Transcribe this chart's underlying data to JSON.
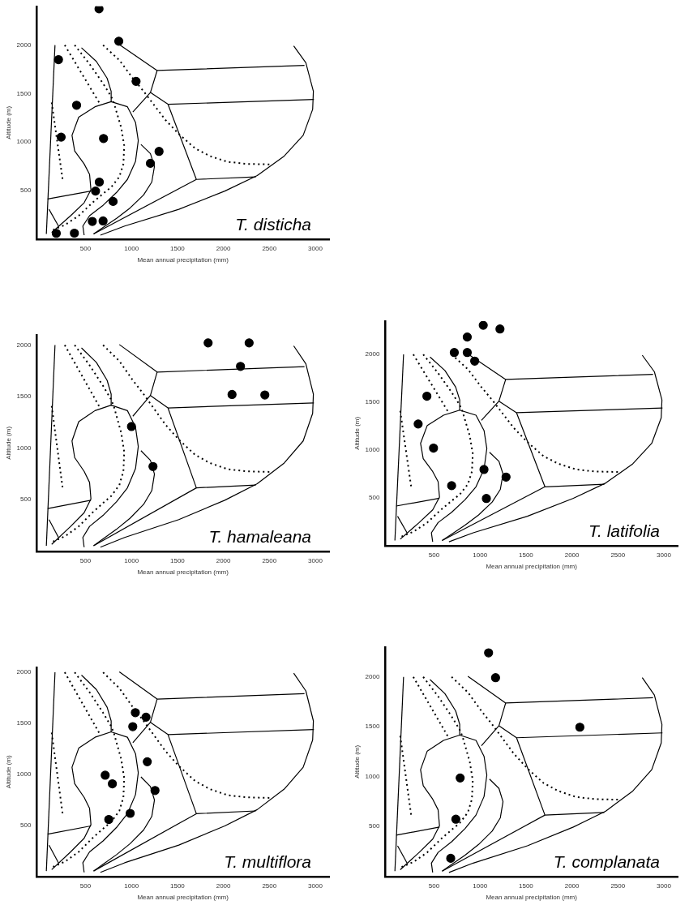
{
  "chart_data": [
    {
      "type": "scatter",
      "xlabel": "Mean annual precipitation (mm)",
      "ylabel": "Altitude (m)",
      "xlim": [
        -30,
        3150
      ],
      "ylim": [
        0,
        2400
      ],
      "xticks": [
        500,
        1000,
        1500,
        2000,
        2500,
        3000
      ],
      "yticks": [
        500,
        1000,
        1500,
        2000
      ],
      "annotations": [
        "T. disticha"
      ],
      "series": [
        {
          "type": "scatter",
          "marker": "circle",
          "color": "#000000",
          "x": [
            647,
            862,
            206,
            1050,
            403,
            696,
            235,
            1300,
            1206,
            650,
            609,
            800,
            574,
            691,
            182,
            379
          ],
          "values": [
            2374,
            2040,
            1850,
            1626,
            1380,
            1037,
            1051,
            904,
            781,
            588,
            495,
            388,
            182,
            187,
            59,
            61
          ]
        },
        {
          "type": "line",
          "marker": "none",
          "line_style": "solid",
          "color": "#000000",
          "x": [
            168,
            74
          ],
          "values": [
            2000,
            53
          ]
        },
        {
          "type": "line",
          "marker": "none",
          "line_style": "dotted",
          "color": "#000000",
          "x": [
            274,
            647
          ],
          "values": [
            2000,
            1409
          ]
        },
        {
          "type": "line",
          "marker": "none",
          "line_style": "dotted",
          "color": "#000000",
          "x": [
            132,
            250
          ],
          "values": [
            1409,
            620
          ]
        },
        {
          "type": "line",
          "marker": "none",
          "line_style": "dotted",
          "color": "#000000",
          "x": [
            382,
            544,
            691,
            779,
            809,
            838,
            888,
            921,
            912,
            868,
            779,
            691,
            574,
            426,
            279,
            147
          ],
          "values": [
            2000,
            1805,
            1604,
            1471,
            1404,
            1310,
            1150,
            963,
            775,
            642,
            535,
            468,
            374,
            241,
            147,
            94
          ]
        },
        {
          "type": "line",
          "marker": "none",
          "line_style": "dotted",
          "color": "#000000",
          "x": [
            691,
            868,
            1015,
            1132,
            1250,
            1368,
            1515,
            1691,
            1853,
            2044,
            2250,
            2500
          ],
          "values": [
            2000,
            1845,
            1658,
            1524,
            1377,
            1230,
            1083,
            936,
            856,
            797,
            775,
            770
          ]
        },
        {
          "type": "line",
          "marker": "none",
          "line_style": "solid",
          "color": "#000000",
          "x": [
            456,
            618,
            735,
            779,
            779
          ],
          "values": [
            1973,
            1832,
            1658,
            1524,
            1417
          ]
        },
        {
          "type": "line",
          "marker": "none",
          "line_style": "solid",
          "color": "#000000",
          "x": [
            132,
            338,
            485,
            559,
            544,
            485,
            382,
            353,
            426,
            603,
            779,
            956,
            1044,
            1074,
            1044,
            956,
            838,
            691,
            544,
            471,
            485
          ],
          "values": [
            67,
            241,
            374,
            508,
            668,
            775,
            909,
            1070,
            1257,
            1364,
            1417,
            1364,
            1203,
            1016,
            802,
            615,
            481,
            348,
            241,
            134,
            40
          ]
        },
        {
          "type": "line",
          "marker": "none",
          "line_style": "solid",
          "color": "#000000",
          "x": [
            1103,
            1206,
            1250,
            1221,
            1132,
            985,
            838,
            691,
            588
          ],
          "values": [
            976,
            882,
            749,
            588,
            455,
            321,
            214,
            120,
            53
          ]
        },
        {
          "type": "line",
          "marker": "none",
          "line_style": "solid",
          "color": "#000000",
          "x": [
            868,
            1279,
            2882
          ],
          "values": [
            2005,
            1738,
            1791
          ]
        },
        {
          "type": "line",
          "marker": "none",
          "line_style": "solid",
          "color": "#000000",
          "x": [
            1279,
            1206,
            1015
          ],
          "values": [
            1738,
            1511,
            1310
          ]
        },
        {
          "type": "line",
          "marker": "none",
          "line_style": "solid",
          "color": "#000000",
          "x": [
            1206,
            1397,
            1706,
            2353
          ],
          "values": [
            1511,
            1390,
            615,
            642
          ]
        },
        {
          "type": "line",
          "marker": "none",
          "line_style": "solid",
          "color": "#000000",
          "x": [
            1397,
            2985
          ],
          "values": [
            1390,
            1439
          ]
        },
        {
          "type": "line",
          "marker": "none",
          "line_style": "solid",
          "color": "#000000",
          "x": [
            2765,
            2897,
            2979,
            2971,
            2868,
            2662,
            2368,
            2015,
            1515,
            926,
            662
          ],
          "values": [
            1992,
            1818,
            1524,
            1337,
            1070,
            856,
            655,
            495,
            307,
            134,
            40
          ]
        },
        {
          "type": "line",
          "marker": "none",
          "line_style": "solid",
          "color": "#000000",
          "x": [
            1706,
            588
          ],
          "values": [
            615,
            53
          ]
        },
        {
          "type": "line",
          "marker": "none",
          "line_style": "solid",
          "color": "#000000",
          "x": [
            88,
            559
          ],
          "values": [
            414,
            495
          ]
        },
        {
          "type": "line",
          "marker": "none",
          "line_style": "solid",
          "color": "#000000",
          "x": [
            103,
            206
          ],
          "values": [
            307,
            134
          ]
        }
      ]
    },
    {
      "type": "scatter",
      "xlabel": "Mean annual precipitation (mm)",
      "ylabel": "Altitude (m)",
      "xlim": [
        -30,
        3150
      ],
      "ylim": [
        0,
        2100
      ],
      "xticks": [
        500,
        1000,
        1500,
        2000,
        2500,
        3000
      ],
      "yticks": [
        500,
        1000,
        1500,
        2000
      ],
      "annotations": [
        "T. hamaleana"
      ],
      "series": [
        {
          "type": "scatter",
          "marker": "circle",
          "color": "#000000",
          "x": [
            1834,
            2280,
            2186,
            2094,
            2451,
            1000,
            1234
          ],
          "values": [
            2021,
            2021,
            1793,
            1521,
            1516,
            1210,
            822
          ]
        },
        {
          "type": "line",
          "marker": "none",
          "line_style": "solid",
          "color": "#000000",
          "x": [
            168,
            74
          ],
          "values": [
            2000,
            53
          ]
        },
        {
          "type": "line",
          "marker": "none",
          "line_style": "dotted",
          "color": "#000000",
          "x": [
            274,
            647
          ],
          "values": [
            2000,
            1409
          ]
        },
        {
          "type": "line",
          "marker": "none",
          "line_style": "dotted",
          "color": "#000000",
          "x": [
            132,
            250
          ],
          "values": [
            1409,
            620
          ]
        },
        {
          "type": "line",
          "marker": "none",
          "line_style": "dotted",
          "color": "#000000",
          "x": [
            382,
            544,
            691,
            779,
            809,
            838,
            888,
            921,
            912,
            868,
            779,
            691,
            574,
            426,
            279,
            147
          ],
          "values": [
            2000,
            1805,
            1604,
            1471,
            1404,
            1310,
            1150,
            963,
            775,
            642,
            535,
            468,
            374,
            241,
            147,
            94
          ]
        },
        {
          "type": "line",
          "marker": "none",
          "line_style": "dotted",
          "color": "#000000",
          "x": [
            691,
            868,
            1015,
            1132,
            1250,
            1368,
            1515,
            1691,
            1853,
            2044,
            2250,
            2500
          ],
          "values": [
            2000,
            1845,
            1658,
            1524,
            1377,
            1230,
            1083,
            936,
            856,
            797,
            775,
            770
          ]
        },
        {
          "type": "line",
          "marker": "none",
          "line_style": "solid",
          "color": "#000000",
          "x": [
            456,
            618,
            735,
            779,
            779
          ],
          "values": [
            1973,
            1832,
            1658,
            1524,
            1417
          ]
        },
        {
          "type": "line",
          "marker": "none",
          "line_style": "solid",
          "color": "#000000",
          "x": [
            132,
            338,
            485,
            559,
            544,
            485,
            382,
            353,
            426,
            603,
            779,
            956,
            1044,
            1074,
            1044,
            956,
            838,
            691,
            544,
            471,
            485
          ],
          "values": [
            67,
            241,
            374,
            508,
            668,
            775,
            909,
            1070,
            1257,
            1364,
            1417,
            1364,
            1203,
            1016,
            802,
            615,
            481,
            348,
            241,
            134,
            40
          ]
        },
        {
          "type": "line",
          "marker": "none",
          "line_style": "solid",
          "color": "#000000",
          "x": [
            1103,
            1206,
            1250,
            1221,
            1132,
            985,
            838,
            691,
            588
          ],
          "values": [
            976,
            882,
            749,
            588,
            455,
            321,
            214,
            120,
            53
          ]
        },
        {
          "type": "line",
          "marker": "none",
          "line_style": "solid",
          "color": "#000000",
          "x": [
            868,
            1279,
            2882
          ],
          "values": [
            2005,
            1738,
            1791
          ]
        },
        {
          "type": "line",
          "marker": "none",
          "line_style": "solid",
          "color": "#000000",
          "x": [
            1279,
            1206,
            1015
          ],
          "values": [
            1738,
            1511,
            1310
          ]
        },
        {
          "type": "line",
          "marker": "none",
          "line_style": "solid",
          "color": "#000000",
          "x": [
            1206,
            1397,
            1706,
            2353
          ],
          "values": [
            1511,
            1390,
            615,
            642
          ]
        },
        {
          "type": "line",
          "marker": "none",
          "line_style": "solid",
          "color": "#000000",
          "x": [
            1397,
            2985
          ],
          "values": [
            1390,
            1439
          ]
        },
        {
          "type": "line",
          "marker": "none",
          "line_style": "solid",
          "color": "#000000",
          "x": [
            2765,
            2897,
            2979,
            2971,
            2868,
            2662,
            2368,
            2015,
            1515,
            926,
            662
          ],
          "values": [
            1992,
            1818,
            1524,
            1337,
            1070,
            856,
            655,
            495,
            307,
            134,
            40
          ]
        },
        {
          "type": "line",
          "marker": "none",
          "line_style": "solid",
          "color": "#000000",
          "x": [
            1706,
            588
          ],
          "values": [
            615,
            53
          ]
        },
        {
          "type": "line",
          "marker": "none",
          "line_style": "solid",
          "color": "#000000",
          "x": [
            88,
            559
          ],
          "values": [
            414,
            495
          ]
        },
        {
          "type": "line",
          "marker": "none",
          "line_style": "solid",
          "color": "#000000",
          "x": [
            103,
            206
          ],
          "values": [
            307,
            134
          ]
        }
      ]
    },
    {
      "type": "scatter",
      "xlabel": "Mean annual precipitation (mm)",
      "ylabel": "Altitude (m)",
      "xlim": [
        -30,
        3150
      ],
      "ylim": [
        0,
        2350
      ],
      "xticks": [
        500,
        1000,
        1500,
        2000,
        2500,
        3000
      ],
      "yticks": [
        500,
        1000,
        1500,
        2000
      ],
      "annotations": [
        "T. latifolia"
      ],
      "series": [
        {
          "type": "scatter",
          "marker": "circle",
          "color": "#000000",
          "x": [
            1035,
            1217,
            861,
            720,
            861,
            942,
            422,
            327,
            494,
            1043,
            1283,
            691,
            1069
          ],
          "values": [
            2305,
            2266,
            2182,
            2020,
            2020,
            1930,
            1563,
            1272,
            1020,
            796,
            717,
            627,
            493
          ]
        },
        {
          "type": "line",
          "marker": "none",
          "line_style": "solid",
          "color": "#000000",
          "x": [
            168,
            74
          ],
          "values": [
            2000,
            53
          ]
        },
        {
          "type": "line",
          "marker": "none",
          "line_style": "dotted",
          "color": "#000000",
          "x": [
            274,
            647
          ],
          "values": [
            2000,
            1409
          ]
        },
        {
          "type": "line",
          "marker": "none",
          "line_style": "dotted",
          "color": "#000000",
          "x": [
            132,
            250
          ],
          "values": [
            1409,
            620
          ]
        },
        {
          "type": "line",
          "marker": "none",
          "line_style": "dotted",
          "color": "#000000",
          "x": [
            382,
            544,
            691,
            779,
            809,
            838,
            888,
            921,
            912,
            868,
            779,
            691,
            574,
            426,
            279,
            147
          ],
          "values": [
            2000,
            1805,
            1604,
            1471,
            1404,
            1310,
            1150,
            963,
            775,
            642,
            535,
            468,
            374,
            241,
            147,
            94
          ]
        },
        {
          "type": "line",
          "marker": "none",
          "line_style": "dotted",
          "color": "#000000",
          "x": [
            691,
            868,
            1015,
            1132,
            1250,
            1368,
            1515,
            1691,
            1853,
            2044,
            2250,
            2500
          ],
          "values": [
            2000,
            1845,
            1658,
            1524,
            1377,
            1230,
            1083,
            936,
            856,
            797,
            775,
            770
          ]
        },
        {
          "type": "line",
          "marker": "none",
          "line_style": "solid",
          "color": "#000000",
          "x": [
            456,
            618,
            735,
            779,
            779
          ],
          "values": [
            1973,
            1832,
            1658,
            1524,
            1417
          ]
        },
        {
          "type": "line",
          "marker": "none",
          "line_style": "solid",
          "color": "#000000",
          "x": [
            132,
            338,
            485,
            559,
            544,
            485,
            382,
            353,
            426,
            603,
            779,
            956,
            1044,
            1074,
            1044,
            956,
            838,
            691,
            544,
            471,
            485
          ],
          "values": [
            67,
            241,
            374,
            508,
            668,
            775,
            909,
            1070,
            1257,
            1364,
            1417,
            1364,
            1203,
            1016,
            802,
            615,
            481,
            348,
            241,
            134,
            40
          ]
        },
        {
          "type": "line",
          "marker": "none",
          "line_style": "solid",
          "color": "#000000",
          "x": [
            1103,
            1206,
            1250,
            1221,
            1132,
            985,
            838,
            691,
            588
          ],
          "values": [
            976,
            882,
            749,
            588,
            455,
            321,
            214,
            120,
            53
          ]
        },
        {
          "type": "line",
          "marker": "none",
          "line_style": "solid",
          "color": "#000000",
          "x": [
            868,
            1279,
            2882
          ],
          "values": [
            2005,
            1738,
            1791
          ]
        },
        {
          "type": "line",
          "marker": "none",
          "line_style": "solid",
          "color": "#000000",
          "x": [
            1279,
            1206,
            1015
          ],
          "values": [
            1738,
            1511,
            1310
          ]
        },
        {
          "type": "line",
          "marker": "none",
          "line_style": "solid",
          "color": "#000000",
          "x": [
            1206,
            1397,
            1706,
            2353
          ],
          "values": [
            1511,
            1390,
            615,
            642
          ]
        },
        {
          "type": "line",
          "marker": "none",
          "line_style": "solid",
          "color": "#000000",
          "x": [
            1397,
            2985
          ],
          "values": [
            1390,
            1439
          ]
        },
        {
          "type": "line",
          "marker": "none",
          "line_style": "solid",
          "color": "#000000",
          "x": [
            2765,
            2897,
            2979,
            2971,
            2868,
            2662,
            2368,
            2015,
            1515,
            926,
            662
          ],
          "values": [
            1992,
            1818,
            1524,
            1337,
            1070,
            856,
            655,
            495,
            307,
            134,
            40
          ]
        },
        {
          "type": "line",
          "marker": "none",
          "line_style": "solid",
          "color": "#000000",
          "x": [
            1706,
            588
          ],
          "values": [
            615,
            53
          ]
        },
        {
          "type": "line",
          "marker": "none",
          "line_style": "solid",
          "color": "#000000",
          "x": [
            88,
            559
          ],
          "values": [
            414,
            495
          ]
        },
        {
          "type": "line",
          "marker": "none",
          "line_style": "solid",
          "color": "#000000",
          "x": [
            103,
            206
          ],
          "values": [
            307,
            134
          ]
        }
      ]
    },
    {
      "type": "scatter",
      "xlabel": "Mean annual precipitation (mm)",
      "ylabel": "Altitude (m)",
      "xlim": [
        -30,
        3150
      ],
      "ylim": [
        0,
        2050
      ],
      "xticks": [
        500,
        1000,
        1500,
        2000,
        2500,
        3000
      ],
      "yticks": [
        500,
        1000,
        1500,
        2000
      ],
      "annotations": [
        "T. multiflora"
      ],
      "series": [
        {
          "type": "scatter",
          "marker": "circle",
          "color": "#000000",
          "x": [
            1042,
            1158,
            1014,
            1172,
            714,
            792,
            1256,
            986,
            753
          ],
          "values": [
            1605,
            1561,
            1468,
            1124,
            992,
            908,
            842,
            618,
            558
          ]
        },
        {
          "type": "line",
          "marker": "none",
          "line_style": "solid",
          "color": "#000000",
          "x": [
            168,
            74
          ],
          "values": [
            2000,
            53
          ]
        },
        {
          "type": "line",
          "marker": "none",
          "line_style": "dotted",
          "color": "#000000",
          "x": [
            274,
            647
          ],
          "values": [
            2000,
            1409
          ]
        },
        {
          "type": "line",
          "marker": "none",
          "line_style": "dotted",
          "color": "#000000",
          "x": [
            132,
            250
          ],
          "values": [
            1409,
            620
          ]
        },
        {
          "type": "line",
          "marker": "none",
          "line_style": "dotted",
          "color": "#000000",
          "x": [
            382,
            544,
            691,
            779,
            809,
            838,
            888,
            921,
            912,
            868,
            779,
            691,
            574,
            426,
            279,
            147
          ],
          "values": [
            2000,
            1805,
            1604,
            1471,
            1404,
            1310,
            1150,
            963,
            775,
            642,
            535,
            468,
            374,
            241,
            147,
            94
          ]
        },
        {
          "type": "line",
          "marker": "none",
          "line_style": "dotted",
          "color": "#000000",
          "x": [
            691,
            868,
            1015,
            1132,
            1250,
            1368,
            1515,
            1691,
            1853,
            2044,
            2250,
            2500
          ],
          "values": [
            2000,
            1845,
            1658,
            1524,
            1377,
            1230,
            1083,
            936,
            856,
            797,
            775,
            770
          ]
        },
        {
          "type": "line",
          "marker": "none",
          "line_style": "solid",
          "color": "#000000",
          "x": [
            456,
            618,
            735,
            779,
            779
          ],
          "values": [
            1973,
            1832,
            1658,
            1524,
            1417
          ]
        },
        {
          "type": "line",
          "marker": "none",
          "line_style": "solid",
          "color": "#000000",
          "x": [
            132,
            338,
            485,
            559,
            544,
            485,
            382,
            353,
            426,
            603,
            779,
            956,
            1044,
            1074,
            1044,
            956,
            838,
            691,
            544,
            471,
            485
          ],
          "values": [
            67,
            241,
            374,
            508,
            668,
            775,
            909,
            1070,
            1257,
            1364,
            1417,
            1364,
            1203,
            1016,
            802,
            615,
            481,
            348,
            241,
            134,
            40
          ]
        },
        {
          "type": "line",
          "marker": "none",
          "line_style": "solid",
          "color": "#000000",
          "x": [
            1103,
            1206,
            1250,
            1221,
            1132,
            985,
            838,
            691,
            588
          ],
          "values": [
            976,
            882,
            749,
            588,
            455,
            321,
            214,
            120,
            53
          ]
        },
        {
          "type": "line",
          "marker": "none",
          "line_style": "solid",
          "color": "#000000",
          "x": [
            868,
            1279,
            2882
          ],
          "values": [
            2005,
            1738,
            1791
          ]
        },
        {
          "type": "line",
          "marker": "none",
          "line_style": "solid",
          "color": "#000000",
          "x": [
            1279,
            1206,
            1015
          ],
          "values": [
            1738,
            1511,
            1310
          ]
        },
        {
          "type": "line",
          "marker": "none",
          "line_style": "solid",
          "color": "#000000",
          "x": [
            1206,
            1397,
            1706,
            2353
          ],
          "values": [
            1511,
            1390,
            615,
            642
          ]
        },
        {
          "type": "line",
          "marker": "none",
          "line_style": "solid",
          "color": "#000000",
          "x": [
            1397,
            2985
          ],
          "values": [
            1390,
            1439
          ]
        },
        {
          "type": "line",
          "marker": "none",
          "line_style": "solid",
          "color": "#000000",
          "x": [
            2765,
            2897,
            2979,
            2971,
            2868,
            2662,
            2368,
            2015,
            1515,
            926,
            662
          ],
          "values": [
            1992,
            1818,
            1524,
            1337,
            1070,
            856,
            655,
            495,
            307,
            134,
            40
          ]
        },
        {
          "type": "line",
          "marker": "none",
          "line_style": "solid",
          "color": "#000000",
          "x": [
            1706,
            588
          ],
          "values": [
            615,
            53
          ]
        },
        {
          "type": "line",
          "marker": "none",
          "line_style": "solid",
          "color": "#000000",
          "x": [
            88,
            559
          ],
          "values": [
            414,
            495
          ]
        },
        {
          "type": "line",
          "marker": "none",
          "line_style": "solid",
          "color": "#000000",
          "x": [
            103,
            206
          ],
          "values": [
            307,
            134
          ]
        }
      ]
    },
    {
      "type": "scatter",
      "xlabel": "Mean annual precipitation (mm)",
      "ylabel": "Altitude (m)",
      "xlim": [
        -30,
        3150
      ],
      "ylim": [
        0,
        2300
      ],
      "xticks": [
        500,
        1000,
        1500,
        2000,
        2500,
        3000
      ],
      "yticks": [
        500,
        1000,
        1500,
        2000
      ],
      "annotations": [
        "T. complanata"
      ],
      "series": [
        {
          "type": "scatter",
          "marker": "circle",
          "color": "#000000",
          "x": [
            1093,
            1169,
            2086,
            784,
            737,
            681
          ],
          "values": [
            2241,
            1992,
            1496,
            987,
            574,
            182
          ]
        },
        {
          "type": "line",
          "marker": "none",
          "line_style": "solid",
          "color": "#000000",
          "x": [
            168,
            74
          ],
          "values": [
            2000,
            53
          ]
        },
        {
          "type": "line",
          "marker": "none",
          "line_style": "dotted",
          "color": "#000000",
          "x": [
            274,
            647
          ],
          "values": [
            2000,
            1409
          ]
        },
        {
          "type": "line",
          "marker": "none",
          "line_style": "dotted",
          "color": "#000000",
          "x": [
            132,
            250
          ],
          "values": [
            1409,
            620
          ]
        },
        {
          "type": "line",
          "marker": "none",
          "line_style": "dotted",
          "color": "#000000",
          "x": [
            382,
            544,
            691,
            779,
            809,
            838,
            888,
            921,
            912,
            868,
            779,
            691,
            574,
            426,
            279,
            147
          ],
          "values": [
            2000,
            1805,
            1604,
            1471,
            1404,
            1310,
            1150,
            963,
            775,
            642,
            535,
            468,
            374,
            241,
            147,
            94
          ]
        },
        {
          "type": "line",
          "marker": "none",
          "line_style": "dotted",
          "color": "#000000",
          "x": [
            691,
            868,
            1015,
            1132,
            1250,
            1368,
            1515,
            1691,
            1853,
            2044,
            2250,
            2500
          ],
          "values": [
            2000,
            1845,
            1658,
            1524,
            1377,
            1230,
            1083,
            936,
            856,
            797,
            775,
            770
          ]
        },
        {
          "type": "line",
          "marker": "none",
          "line_style": "solid",
          "color": "#000000",
          "x": [
            456,
            618,
            735,
            779,
            779
          ],
          "values": [
            1973,
            1832,
            1658,
            1524,
            1417
          ]
        },
        {
          "type": "line",
          "marker": "none",
          "line_style": "solid",
          "color": "#000000",
          "x": [
            132,
            338,
            485,
            559,
            544,
            485,
            382,
            353,
            426,
            603,
            779,
            956,
            1044,
            1074,
            1044,
            956,
            838,
            691,
            544,
            471,
            485
          ],
          "values": [
            67,
            241,
            374,
            508,
            668,
            775,
            909,
            1070,
            1257,
            1364,
            1417,
            1364,
            1203,
            1016,
            802,
            615,
            481,
            348,
            241,
            134,
            40
          ]
        },
        {
          "type": "line",
          "marker": "none",
          "line_style": "solid",
          "color": "#000000",
          "x": [
            1103,
            1206,
            1250,
            1221,
            1132,
            985,
            838,
            691,
            588
          ],
          "values": [
            976,
            882,
            749,
            588,
            455,
            321,
            214,
            120,
            53
          ]
        },
        {
          "type": "line",
          "marker": "none",
          "line_style": "solid",
          "color": "#000000",
          "x": [
            868,
            1279,
            2882
          ],
          "values": [
            2005,
            1738,
            1791
          ]
        },
        {
          "type": "line",
          "marker": "none",
          "line_style": "solid",
          "color": "#000000",
          "x": [
            1279,
            1206,
            1015
          ],
          "values": [
            1738,
            1511,
            1310
          ]
        },
        {
          "type": "line",
          "marker": "none",
          "line_style": "solid",
          "color": "#000000",
          "x": [
            1206,
            1397,
            1706,
            2353
          ],
          "values": [
            1511,
            1390,
            615,
            642
          ]
        },
        {
          "type": "line",
          "marker": "none",
          "line_style": "solid",
          "color": "#000000",
          "x": [
            1397,
            2985
          ],
          "values": [
            1390,
            1439
          ]
        },
        {
          "type": "line",
          "marker": "none",
          "line_style": "solid",
          "color": "#000000",
          "x": [
            2765,
            2897,
            2979,
            2971,
            2868,
            2662,
            2368,
            2015,
            1515,
            926,
            662
          ],
          "values": [
            1992,
            1818,
            1524,
            1337,
            1070,
            856,
            655,
            495,
            307,
            134,
            40
          ]
        },
        {
          "type": "line",
          "marker": "none",
          "line_style": "solid",
          "color": "#000000",
          "x": [
            1706,
            588
          ],
          "values": [
            615,
            53
          ]
        },
        {
          "type": "line",
          "marker": "none",
          "line_style": "solid",
          "color": "#000000",
          "x": [
            88,
            559
          ],
          "values": [
            414,
            495
          ]
        },
        {
          "type": "line",
          "marker": "none",
          "line_style": "solid",
          "color": "#000000",
          "x": [
            103,
            206
          ],
          "values": [
            307,
            134
          ]
        }
      ]
    }
  ]
}
